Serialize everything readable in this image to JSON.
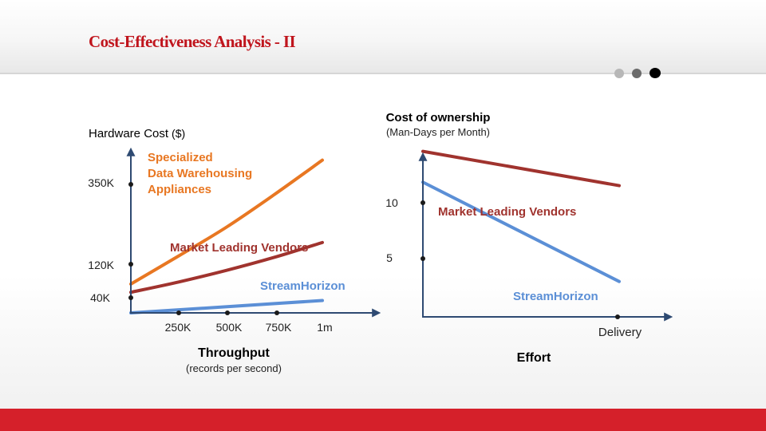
{
  "slide": {
    "title": "Cost-Effectiveness Analysis - II",
    "nav_dot_count": 3,
    "accent_color": "#d5202a",
    "title_color": "#c0151d"
  },
  "chart_data": [
    {
      "type": "line",
      "title": "",
      "ylabel": "Hardware Cost",
      "ylabel_unit": "($)",
      "xlabel": "Throughput",
      "xlabel_sub": "(records per second)",
      "y_ticks": [
        "40K",
        "120K",
        "350K"
      ],
      "x_ticks": [
        "250K",
        "500K",
        "750K",
        "1m"
      ],
      "series": [
        {
          "name_lines": [
            "Specialized",
            "Data Warehousing",
            "Appliances"
          ],
          "color": "#e87722",
          "x": [
            0,
            250,
            500,
            750,
            1000
          ],
          "y": [
            84,
            166,
            250,
            345,
            445
          ]
        },
        {
          "name_lines": [
            "Market Leading Vendors"
          ],
          "color": "#a0332e",
          "x": [
            0,
            250,
            500,
            750,
            1000
          ],
          "y": [
            60,
            90,
            124,
            162,
            205
          ]
        },
        {
          "name_lines": [
            "StreamHorizon"
          ],
          "color": "#5b8fd6",
          "x": [
            0,
            1000
          ],
          "y": [
            0,
            36
          ]
        }
      ]
    },
    {
      "type": "line",
      "title": "Cost of ownership",
      "subtitle": "(Man-Days per Month)",
      "xlabel": "Effort",
      "y_ticks": [
        "5",
        "10"
      ],
      "x_ticks": [
        "Delivery"
      ],
      "series": [
        {
          "name_lines": [
            "Market Leading Vendors"
          ],
          "color": "#a0332e",
          "x": [
            0,
            100
          ],
          "y": [
            14.5,
            11.5
          ]
        },
        {
          "name_lines": [
            "StreamHorizon"
          ],
          "color": "#5b8fd6",
          "x": [
            0,
            100
          ],
          "y": [
            11.8,
            3.1
          ]
        }
      ]
    }
  ]
}
